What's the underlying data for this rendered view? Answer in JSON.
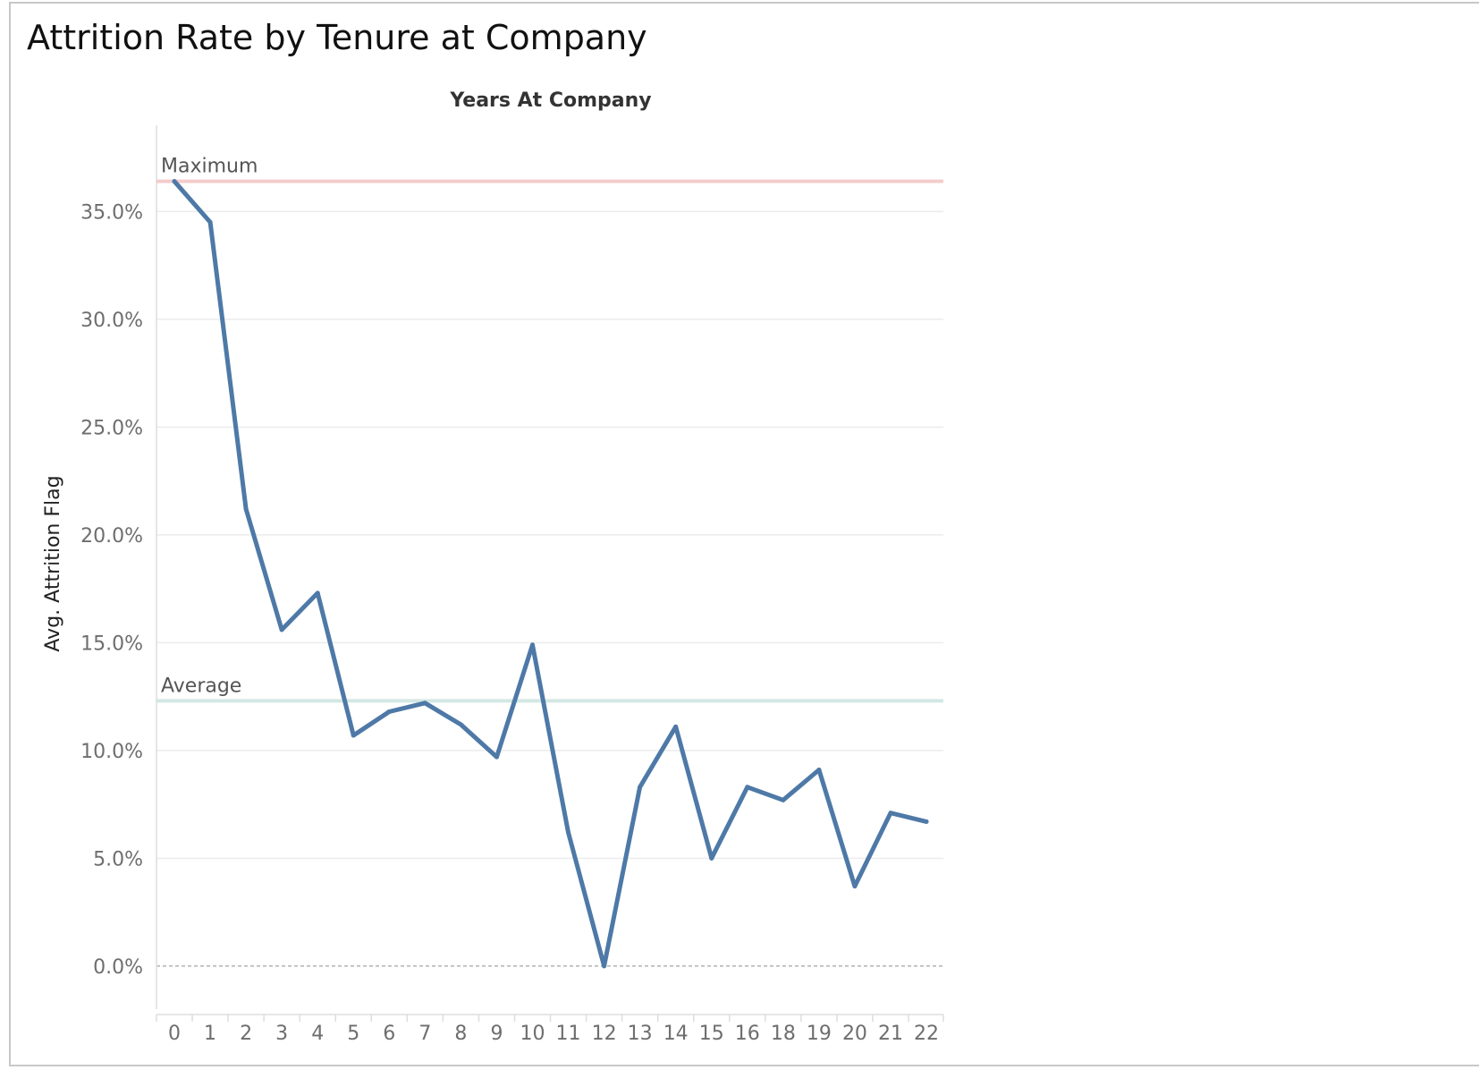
{
  "title": "Attrition Rate by Tenure at Company",
  "chart_data": {
    "type": "line",
    "title": "Attrition Rate by Tenure at Company",
    "xlabel": "Years At Company",
    "ylabel": "Avg. Attrition Flag",
    "categories": [
      "0",
      "1",
      "2",
      "3",
      "4",
      "5",
      "6",
      "7",
      "8",
      "9",
      "10",
      "11",
      "12",
      "13",
      "14",
      "15",
      "16",
      "18",
      "19",
      "20",
      "21",
      "22"
    ],
    "series": [
      {
        "values": [
          36.4,
          34.5,
          21.2,
          15.6,
          17.3,
          10.7,
          11.8,
          12.2,
          11.2,
          9.7,
          14.9,
          6.2,
          0.0,
          8.3,
          11.1,
          5.0,
          8.3,
          7.7,
          9.1,
          3.7,
          7.1,
          6.7
        ]
      }
    ],
    "ylim": [
      -2.0,
      39.0
    ],
    "yticks": [
      0,
      5,
      10,
      15,
      20,
      25,
      30,
      35
    ],
    "ytick_labels": [
      "0.0%",
      "5.0%",
      "10.0%",
      "15.0%",
      "20.0%",
      "25.0%",
      "30.0%",
      "35.0%"
    ],
    "reference_lines": [
      {
        "label": "Maximum",
        "value": 36.4,
        "color": "#f4cccc"
      },
      {
        "label": "Average",
        "value": 12.3,
        "color": "#d3e8e4"
      }
    ],
    "line_color": "#4e79a7",
    "grid": true
  }
}
